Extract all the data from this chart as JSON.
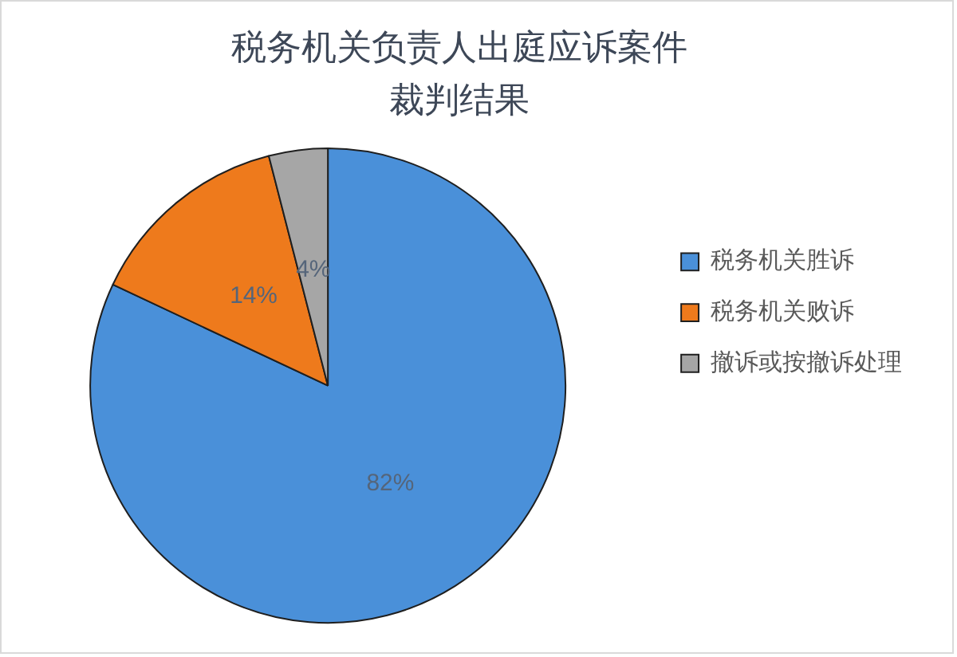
{
  "chart_data": {
    "type": "pie",
    "title": "税务机关负责人出庭应诉案件裁判结果",
    "categories": [
      "税务机关胜诉",
      "税务机关败诉",
      "撤诉或按撤诉处理"
    ],
    "values": [
      82,
      14,
      4
    ],
    "colors": [
      "#4a90d9",
      "#ee7a1c",
      "#a6a6a6"
    ],
    "value_labels": [
      "82%",
      "14%",
      "4%"
    ],
    "legend": "right"
  }
}
